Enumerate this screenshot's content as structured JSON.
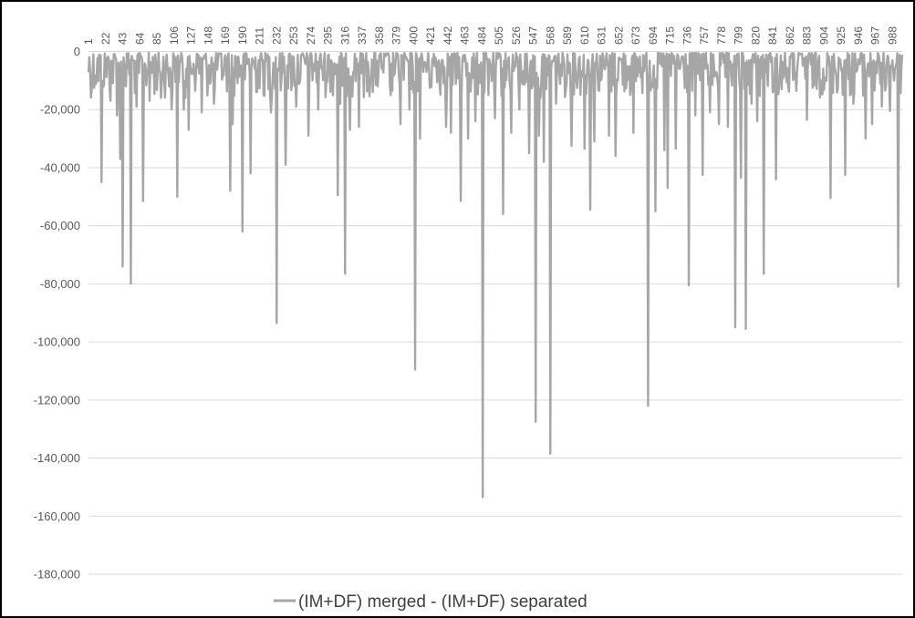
{
  "chart_data": {
    "type": "line",
    "title": "",
    "xlabel": "",
    "ylabel": "",
    "x_range": [
      1,
      1000
    ],
    "x_axis_position": "top",
    "x_tick_step": 21,
    "ylim": [
      -180000,
      0
    ],
    "y_tick_step": 20000,
    "y_tick_labels": [
      "0",
      "-20,000",
      "-40,000",
      "-60,000",
      "-80,000",
      "-100,000",
      "-120,000",
      "-140,000",
      "-160,000",
      "-180,000"
    ],
    "grid": "horizontal",
    "legend_position": "bottom",
    "series": [
      {
        "name": "(IM+DF) merged - (IM+DF) separated",
        "color": "#a6a6a6",
        "baseline_range": [
          -16000,
          -500
        ],
        "spikes": [
          {
            "x": 5,
            "y": -13000
          },
          {
            "x": 17,
            "y": -45000
          },
          {
            "x": 28,
            "y": -17000
          },
          {
            "x": 36,
            "y": -22000
          },
          {
            "x": 40,
            "y": -37000
          },
          {
            "x": 43,
            "y": -74000
          },
          {
            "x": 47,
            "y": -12000
          },
          {
            "x": 53,
            "y": -80000
          },
          {
            "x": 60,
            "y": -19000
          },
          {
            "x": 68,
            "y": -51500
          },
          {
            "x": 76,
            "y": -17000
          },
          {
            "x": 90,
            "y": -16000
          },
          {
            "x": 103,
            "y": -20000
          },
          {
            "x": 110,
            "y": -50000
          },
          {
            "x": 118,
            "y": -20000
          },
          {
            "x": 124,
            "y": -27000
          },
          {
            "x": 140,
            "y": -21000
          },
          {
            "x": 155,
            "y": -18000
          },
          {
            "x": 175,
            "y": -48000
          },
          {
            "x": 178,
            "y": -25000
          },
          {
            "x": 190,
            "y": -62000
          },
          {
            "x": 200,
            "y": -42000
          },
          {
            "x": 216,
            "y": -15000
          },
          {
            "x": 225,
            "y": -21000
          },
          {
            "x": 232,
            "y": -93500
          },
          {
            "x": 243,
            "y": -39000
          },
          {
            "x": 256,
            "y": -19000
          },
          {
            "x": 271,
            "y": -29000
          },
          {
            "x": 283,
            "y": -20000
          },
          {
            "x": 307,
            "y": -49500
          },
          {
            "x": 310,
            "y": -18000
          },
          {
            "x": 316,
            "y": -76500
          },
          {
            "x": 322,
            "y": -27000
          },
          {
            "x": 333,
            "y": -26000
          },
          {
            "x": 350,
            "y": -14000
          },
          {
            "x": 372,
            "y": -15000
          },
          {
            "x": 384,
            "y": -25000
          },
          {
            "x": 395,
            "y": -20000
          },
          {
            "x": 402,
            "y": -109500
          },
          {
            "x": 408,
            "y": -30000
          },
          {
            "x": 440,
            "y": -26000
          },
          {
            "x": 446,
            "y": -28000
          },
          {
            "x": 458,
            "y": -51500
          },
          {
            "x": 467,
            "y": -30000
          },
          {
            "x": 476,
            "y": -24000
          },
          {
            "x": 485,
            "y": -153500
          },
          {
            "x": 492,
            "y": -15000
          },
          {
            "x": 500,
            "y": -23000
          },
          {
            "x": 510,
            "y": -56000
          },
          {
            "x": 520,
            "y": -28000
          },
          {
            "x": 530,
            "y": -20000
          },
          {
            "x": 542,
            "y": -35000
          },
          {
            "x": 550,
            "y": -127500
          },
          {
            "x": 554,
            "y": -29000
          },
          {
            "x": 560,
            "y": -38000
          },
          {
            "x": 568,
            "y": -138500
          },
          {
            "x": 575,
            "y": -18000
          },
          {
            "x": 594,
            "y": -32500
          },
          {
            "x": 610,
            "y": -33500
          },
          {
            "x": 617,
            "y": -54500
          },
          {
            "x": 622,
            "y": -31000
          },
          {
            "x": 640,
            "y": -29000
          },
          {
            "x": 648,
            "y": -36000
          },
          {
            "x": 670,
            "y": -28000
          },
          {
            "x": 688,
            "y": -122000
          },
          {
            "x": 697,
            "y": -55000
          },
          {
            "x": 708,
            "y": -34000
          },
          {
            "x": 712,
            "y": -47000
          },
          {
            "x": 722,
            "y": -33500
          },
          {
            "x": 738,
            "y": -80500
          },
          {
            "x": 746,
            "y": -22000
          },
          {
            "x": 755,
            "y": -42500
          },
          {
            "x": 764,
            "y": -21000
          },
          {
            "x": 775,
            "y": -25000
          },
          {
            "x": 786,
            "y": -26000
          },
          {
            "x": 795,
            "y": -95000
          },
          {
            "x": 802,
            "y": -43500
          },
          {
            "x": 808,
            "y": -95500
          },
          {
            "x": 815,
            "y": -18000
          },
          {
            "x": 822,
            "y": -24000
          },
          {
            "x": 830,
            "y": -76500
          },
          {
            "x": 845,
            "y": -44000
          },
          {
            "x": 852,
            "y": -13000
          },
          {
            "x": 860,
            "y": -12000
          },
          {
            "x": 883,
            "y": -23500
          },
          {
            "x": 901,
            "y": -14000
          },
          {
            "x": 912,
            "y": -50500
          },
          {
            "x": 930,
            "y": -42500
          },
          {
            "x": 940,
            "y": -18000
          },
          {
            "x": 955,
            "y": -30000
          },
          {
            "x": 963,
            "y": -25000
          },
          {
            "x": 975,
            "y": -19000
          },
          {
            "x": 985,
            "y": -20500
          },
          {
            "x": 990,
            "y": -10000
          },
          {
            "x": 995,
            "y": -81000
          }
        ]
      }
    ]
  }
}
